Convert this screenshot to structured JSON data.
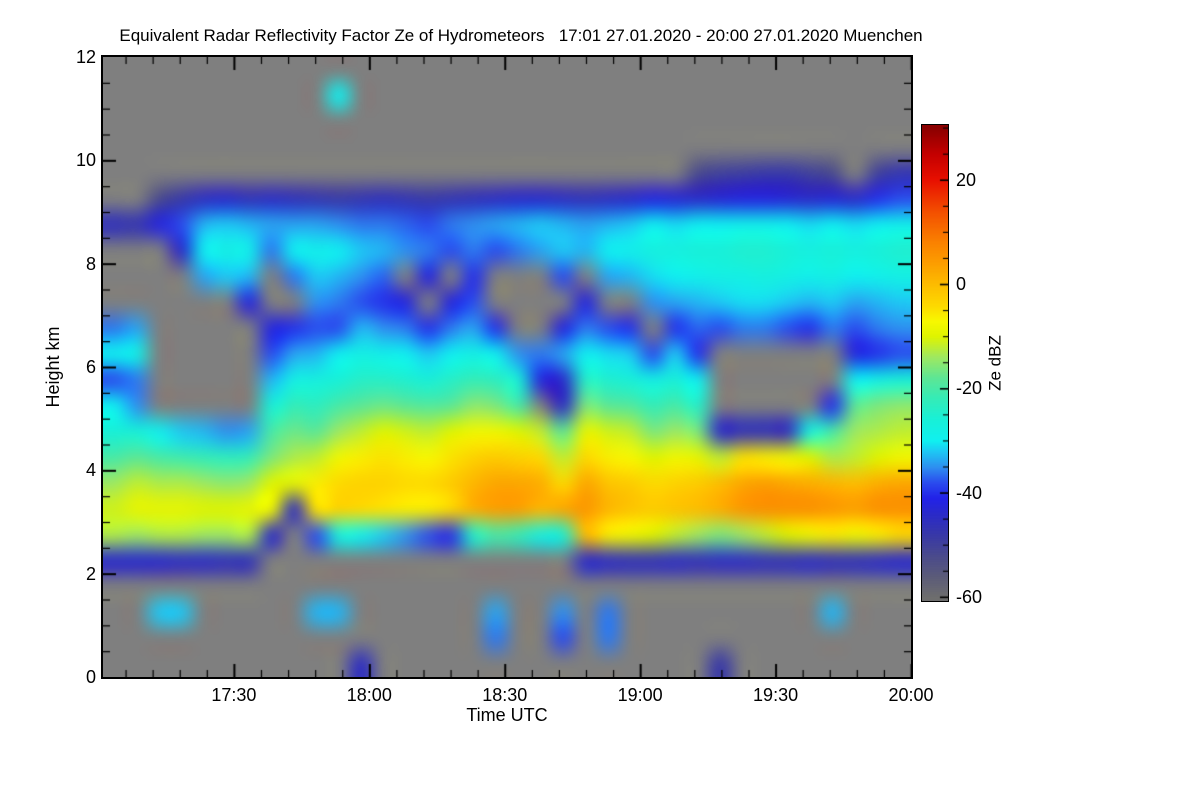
{
  "title": "Equivalent Radar Reflectivity Factor Ze of Hydrometeors   17:01 27.01.2020 - 20:00 27.01.2020 Muenchen",
  "axes": {
    "x": {
      "label": "Time UTC",
      "start": "17:01",
      "end": "20:00",
      "total_minutes": 179,
      "ticks": [
        {
          "label": "17:30",
          "minute": 29
        },
        {
          "label": "18:00",
          "minute": 59
        },
        {
          "label": "18:30",
          "minute": 89
        },
        {
          "label": "19:00",
          "minute": 119
        },
        {
          "label": "19:30",
          "minute": 149
        },
        {
          "label": "20:00",
          "minute": 179
        }
      ],
      "minor_first_minute": 5,
      "minor_step_minutes": 6
    },
    "y": {
      "label": "Height km",
      "range": [
        0,
        12
      ],
      "ticks": [
        {
          "label": "0",
          "km": 0
        },
        {
          "label": "2",
          "km": 2
        },
        {
          "label": "4",
          "km": 4
        },
        {
          "label": "6",
          "km": 6
        },
        {
          "label": "8",
          "km": 8
        },
        {
          "label": "10",
          "km": 10
        },
        {
          "label": "12",
          "km": 12
        }
      ],
      "minor_step_km": 0.5
    }
  },
  "colorbar": {
    "label": "Ze dBZ",
    "vmin": -60.8,
    "vmax": 30.5,
    "ticks": [
      {
        "label": "20",
        "value": 20
      },
      {
        "label": "0",
        "value": 0
      },
      {
        "label": "-20",
        "value": -20
      },
      {
        "label": "-40",
        "value": -40
      },
      {
        "label": "-60",
        "value": -60
      }
    ],
    "minor_step": 5,
    "stops": [
      [
        -60,
        "#6e6e6e"
      ],
      [
        -56,
        "#5b5b79"
      ],
      [
        -52,
        "#4a4a8d"
      ],
      [
        -48,
        "#3838a8"
      ],
      [
        -44,
        "#2a2aca"
      ],
      [
        -41,
        "#2222e8"
      ],
      [
        -38,
        "#2a4cee"
      ],
      [
        -35,
        "#2e90f0"
      ],
      [
        -32,
        "#1ec8f4"
      ],
      [
        -30,
        "#10f0f0"
      ],
      [
        -26,
        "#18f0d8"
      ],
      [
        -22,
        "#34ecb8"
      ],
      [
        -18,
        "#5ce696"
      ],
      [
        -14,
        "#9ee862"
      ],
      [
        -10,
        "#dff400"
      ],
      [
        -7,
        "#f8f800"
      ],
      [
        -4,
        "#fdd900"
      ],
      [
        0,
        "#fdbc00"
      ],
      [
        4,
        "#fc9e00"
      ],
      [
        8,
        "#fa8200"
      ],
      [
        14,
        "#f34f00"
      ],
      [
        20,
        "#e81000"
      ],
      [
        25,
        "#c40000"
      ],
      [
        30,
        "#8b0000"
      ]
    ]
  },
  "colors": {
    "plot_background": "#7f7f7f",
    "frame": "#000000",
    "page_background": "#ffffff",
    "text": "#000000"
  },
  "chart_data": {
    "type": "heatmap",
    "title": "Equivalent Radar Reflectivity Factor Ze of Hydrometeors",
    "period": "17:01 27.01.2020 - 20:00 27.01.2020",
    "site": "Muenchen",
    "xlabel": "Time UTC",
    "ylabel": "Height km",
    "value_unit": "Ze dBZ",
    "value_range": [
      -60,
      30
    ],
    "x_start": "17:01",
    "x_end": "20:00",
    "n_cols": 36,
    "n_rows": 24,
    "rows_top_km": 12,
    "row_height_km": 0.5,
    "no_echo_value": null,
    "description": "Columns are ~5-minute time steps from 17:01 to 20:00; each column lists dBZ values for 0.5 km height bins from 11.75 km (top) down to 0.25 km (bottom); null = no echo (gray).",
    "columns": [
      [
        null,
        null,
        null,
        null,
        null,
        null,
        -46,
        null,
        null,
        null,
        -36,
        -30,
        -38,
        -30,
        -26,
        -20,
        -14,
        -11,
        -13,
        -44,
        null,
        null,
        null,
        null
      ],
      [
        null,
        null,
        null,
        null,
        null,
        null,
        -47,
        null,
        null,
        null,
        -34,
        -28,
        -36,
        -35,
        -26,
        -18,
        -12,
        -9,
        -14,
        -44,
        null,
        null,
        null,
        null
      ],
      [
        null,
        null,
        null,
        null,
        null,
        -52,
        -42,
        null,
        null,
        null,
        null,
        null,
        null,
        null,
        -30,
        -20,
        -13,
        -9,
        -13,
        -44,
        null,
        -32,
        null,
        null
      ],
      [
        null,
        null,
        null,
        null,
        null,
        -48,
        -38,
        -44,
        null,
        null,
        null,
        null,
        null,
        null,
        -32,
        -21,
        -13,
        -9,
        -13,
        -45,
        null,
        -32,
        null,
        null
      ],
      [
        null,
        null,
        null,
        null,
        null,
        -45,
        -33,
        -30,
        -34,
        null,
        null,
        null,
        null,
        null,
        -33,
        -22,
        -14,
        -10,
        -14,
        -45,
        null,
        null,
        null,
        null
      ],
      [
        null,
        null,
        null,
        null,
        null,
        -44,
        -32,
        -28,
        -32,
        null,
        null,
        null,
        null,
        null,
        -35,
        -23,
        -15,
        -10,
        -14,
        -46,
        null,
        null,
        null,
        null
      ],
      [
        null,
        null,
        null,
        null,
        null,
        -46,
        -33,
        -29,
        -33,
        -42,
        null,
        null,
        null,
        null,
        -34,
        -22,
        -14,
        -9,
        -13,
        -46,
        null,
        null,
        null,
        null
      ],
      [
        null,
        null,
        null,
        null,
        null,
        -45,
        -34,
        -36,
        null,
        null,
        -42,
        -38,
        -33,
        -26,
        -20,
        -16,
        -10,
        -8,
        -44,
        null,
        null,
        null,
        null,
        null
      ],
      [
        null,
        null,
        null,
        null,
        null,
        -46,
        -34,
        -30,
        -36,
        null,
        -40,
        -34,
        -28,
        -22,
        -17,
        -13,
        -9,
        -45,
        null,
        null,
        null,
        null,
        null,
        null
      ],
      [
        null,
        null,
        null,
        null,
        null,
        -47,
        -34,
        -29,
        -32,
        -35,
        -38,
        -33,
        -27,
        -23,
        -18,
        -12,
        -6,
        -5,
        -38,
        null,
        null,
        -33,
        null,
        null
      ],
      [
        null,
        -30,
        null,
        null,
        null,
        -48,
        -35,
        -30,
        -33,
        -36,
        -38,
        -30,
        -26,
        -20,
        -14,
        -8,
        -4,
        -3,
        -28,
        null,
        null,
        -33,
        null,
        null
      ],
      [
        null,
        null,
        null,
        null,
        null,
        -47,
        -36,
        -32,
        -35,
        -38,
        -33,
        -28,
        -24,
        -18,
        -12,
        -6,
        -3,
        -4,
        -30,
        null,
        null,
        null,
        null,
        -45
      ],
      [
        null,
        null,
        null,
        null,
        null,
        -46,
        -36,
        -33,
        -37,
        -40,
        -35,
        -29,
        -24,
        -17,
        -10,
        -5,
        -3,
        -5,
        -32,
        null,
        null,
        null,
        null,
        null
      ],
      [
        null,
        null,
        null,
        null,
        null,
        -47,
        -37,
        -35,
        null,
        -42,
        -36,
        -30,
        -25,
        -18,
        -11,
        -6,
        -4,
        -6,
        -35,
        null,
        null,
        null,
        null,
        null
      ],
      [
        null,
        null,
        null,
        null,
        null,
        -48,
        -38,
        -36,
        -42,
        null,
        -40,
        -32,
        -26,
        -19,
        -12,
        -7,
        -4,
        -6,
        -38,
        null,
        null,
        null,
        null,
        null
      ],
      [
        null,
        null,
        null,
        null,
        null,
        -47,
        -36,
        -38,
        null,
        -42,
        -36,
        -30,
        -24,
        -18,
        -10,
        -5,
        -2,
        -4,
        -40,
        null,
        null,
        null,
        null,
        null
      ],
      [
        null,
        null,
        null,
        null,
        null,
        -46,
        -35,
        -36,
        -40,
        -38,
        -34,
        -28,
        -22,
        -15,
        -8,
        -3,
        1,
        2,
        -25,
        null,
        null,
        null,
        null,
        null
      ],
      [
        null,
        null,
        null,
        null,
        null,
        -45,
        -34,
        -38,
        null,
        null,
        -40,
        -30,
        -23,
        -16,
        -8,
        -2,
        3,
        4,
        -20,
        null,
        null,
        -34,
        -36,
        null
      ],
      [
        null,
        null,
        null,
        null,
        null,
        -44,
        -33,
        -36,
        null,
        null,
        null,
        -35,
        -26,
        -20,
        -10,
        -3,
        3,
        4,
        -22,
        null,
        null,
        null,
        null,
        null
      ],
      [
        null,
        null,
        null,
        null,
        null,
        -44,
        -32,
        -34,
        null,
        null,
        null,
        -36,
        -42,
        null,
        -12,
        -4,
        2,
        1,
        -28,
        null,
        null,
        null,
        null,
        null
      ],
      [
        null,
        null,
        null,
        null,
        null,
        -45,
        -33,
        -32,
        -38,
        null,
        -42,
        -34,
        -44,
        -45,
        -18,
        -12,
        -4,
        3,
        -26,
        null,
        null,
        -35,
        -38,
        null
      ],
      [
        null,
        null,
        null,
        null,
        null,
        -46,
        -34,
        -33,
        null,
        -42,
        -36,
        -30,
        -24,
        -16,
        -9,
        -4,
        3,
        5,
        0,
        -44,
        null,
        null,
        null,
        null
      ],
      [
        null,
        null,
        null,
        null,
        null,
        -45,
        -33,
        -30,
        -34,
        null,
        -38,
        -31,
        -25,
        -18,
        -11,
        -6,
        -1,
        1,
        -6,
        -45,
        null,
        -36,
        -36,
        null
      ],
      [
        null,
        null,
        null,
        null,
        null,
        -44,
        -32,
        -29,
        -33,
        null,
        -40,
        -32,
        -26,
        -19,
        -12,
        -7,
        -2,
        -1,
        -8,
        -46,
        null,
        null,
        null,
        null
      ],
      [
        null,
        null,
        null,
        null,
        null,
        -42,
        -30,
        -27,
        -31,
        -35,
        null,
        -38,
        -28,
        -22,
        -16,
        -10,
        -4,
        -2,
        -10,
        -46,
        null,
        null,
        null,
        null
      ],
      [
        null,
        null,
        null,
        null,
        null,
        -43,
        -31,
        -27,
        -30,
        -34,
        -40,
        -32,
        -26,
        -20,
        -14,
        -8,
        -3,
        -1,
        -12,
        -45,
        null,
        null,
        null,
        null
      ],
      [
        null,
        null,
        null,
        null,
        -52,
        -44,
        -30,
        -26,
        -29,
        -33,
        -37,
        -40,
        -30,
        -24,
        -16,
        -9,
        -2,
        0,
        -14,
        -46,
        null,
        null,
        null,
        null
      ],
      [
        null,
        null,
        null,
        null,
        -50,
        -43,
        -30,
        -26,
        -28,
        -32,
        -38,
        null,
        null,
        null,
        -44,
        -12,
        0,
        2,
        -16,
        -45,
        null,
        null,
        null,
        -48
      ],
      [
        null,
        null,
        null,
        null,
        -49,
        -42,
        -29,
        -25,
        -28,
        -31,
        -36,
        null,
        null,
        null,
        -46,
        -5,
        3,
        5,
        -14,
        -45,
        null,
        null,
        null,
        null
      ],
      [
        null,
        null,
        null,
        null,
        -48,
        -42,
        -29,
        -25,
        -27,
        -31,
        -36,
        null,
        null,
        null,
        -46,
        -6,
        4,
        6,
        -12,
        -46,
        null,
        null,
        null,
        null
      ],
      [
        null,
        null,
        null,
        null,
        -48,
        -43,
        -30,
        -26,
        -28,
        -32,
        -38,
        null,
        null,
        null,
        -45,
        -8,
        3,
        6,
        -10,
        -46,
        null,
        null,
        null,
        null
      ],
      [
        null,
        null,
        null,
        null,
        -50,
        -44,
        -31,
        -27,
        -29,
        -33,
        -40,
        null,
        null,
        null,
        -28,
        -10,
        2,
        6,
        -8,
        -45,
        null,
        null,
        null,
        null
      ],
      [
        null,
        null,
        null,
        null,
        -52,
        -43,
        -30,
        -26,
        -28,
        -32,
        -36,
        null,
        null,
        -40,
        -20,
        -13,
        1,
        5,
        -6,
        -46,
        null,
        -33,
        null,
        null
      ],
      [
        null,
        null,
        null,
        null,
        null,
        -44,
        -31,
        -27,
        -30,
        -34,
        -38,
        -42,
        -30,
        -18,
        -14,
        -12,
        0,
        4,
        -8,
        -46,
        null,
        null,
        null,
        null
      ],
      [
        null,
        null,
        null,
        null,
        -50,
        -40,
        -30,
        -26,
        -29,
        -33,
        -36,
        -40,
        -28,
        -16,
        -13,
        -10,
        2,
        6,
        -6,
        -45,
        null,
        null,
        null,
        null
      ],
      [
        null,
        null,
        null,
        null,
        -47,
        -38,
        -29,
        -25,
        -28,
        -32,
        -35,
        -38,
        -26,
        -15,
        -12,
        -8,
        3,
        6,
        -4,
        -44,
        null,
        null,
        null,
        null
      ]
    ]
  }
}
